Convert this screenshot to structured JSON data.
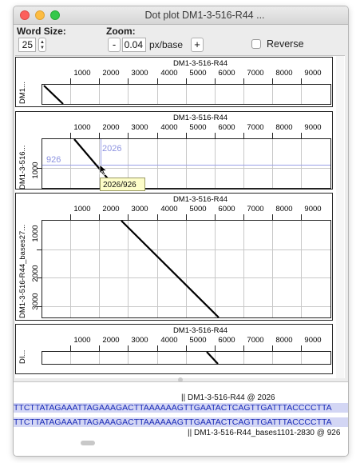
{
  "window": {
    "title": "Dot plot DM1-3-516-R44 ..."
  },
  "controls": {
    "word_size_label": "Word Size:",
    "word_size_value": "25",
    "zoom_label": "Zoom:",
    "zoom_minus": "-",
    "zoom_value": "0.04",
    "zoom_unit": "px/base",
    "zoom_plus": "+",
    "reverse_label": "Reverse"
  },
  "ticks": [
    "1000",
    "2000",
    "3000",
    "4000",
    "5000",
    "6000",
    "7000",
    "8000",
    "9000"
  ],
  "panels": [
    {
      "top_label": "DM1-3-516-R44",
      "side_label": "DM1...",
      "y_ticks": []
    },
    {
      "top_label": "DM1-3-516-R44",
      "side_label": "DM1-3-516...",
      "y_ticks": [
        "1000"
      ],
      "marker_x_label": "2026",
      "marker_y_label": "926",
      "tooltip": "2026/926"
    },
    {
      "top_label": "DM1-3-516-R44",
      "side_label": "DM1-3-516-R44_bases27...",
      "y_ticks": [
        "1000",
        "2000",
        "3000"
      ]
    },
    {
      "top_label": "DM1-3-516-R44",
      "side_label": "DI...",
      "y_ticks": []
    }
  ],
  "sequence": {
    "top_header": "|| DM1-3-516-R44 @ 2026",
    "line1": "TTCTTATAGAAATTAGAAAGACTTAAAAAAGTTGAATACTCAGTTGATTTACCCCTTA",
    "line2": "TTCTTATAGAAATTAGAAAGACTTAAAAAAGTTGAATACTCAGTTGATTTACCCCTTA",
    "bottom_header": "|| DM1-3-516-R44_bases1101-2830 @ 926"
  }
}
